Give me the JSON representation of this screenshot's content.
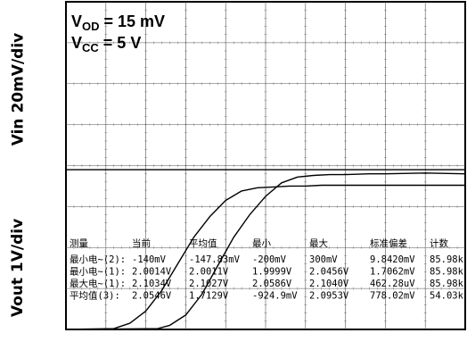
{
  "y_labels": {
    "top": "Vin 20mV/div",
    "bottom": "Vout 1V/div"
  },
  "conditions": [
    {
      "main": "V",
      "sub": "OD",
      "rest": " = 15 mV"
    },
    {
      "main": "V",
      "sub": "CC",
      "rest": " = 5 V"
    }
  ],
  "chart_data": {
    "type": "line",
    "title": "",
    "xlabel": "",
    "ylabel": "",
    "grid": true,
    "divisions": {
      "x": 10,
      "y": 8
    },
    "series": [
      {
        "x": [
          0,
          1.2,
          1.6,
          2.0,
          2.4,
          2.8,
          3.2,
          3.6,
          4.0,
          4.4,
          4.8,
          5.2,
          5.6,
          6.0,
          6.4,
          7.0,
          8.0,
          9.0,
          10.0
        ],
        "y": [
          0.0,
          0.02,
          0.15,
          0.45,
          0.95,
          1.6,
          2.25,
          2.75,
          3.15,
          3.38,
          3.46,
          3.48,
          3.5,
          3.5,
          3.52,
          3.52,
          3.52,
          3.52,
          3.52
        ]
      },
      {
        "x": [
          0,
          2.3,
          2.6,
          3.0,
          3.4,
          3.8,
          4.2,
          4.6,
          5.0,
          5.4,
          5.8,
          6.2,
          6.6,
          7.0,
          7.6,
          8.0,
          9.0,
          10.0
        ],
        "y": [
          0.0,
          0.02,
          0.1,
          0.35,
          0.85,
          1.55,
          2.25,
          2.8,
          3.25,
          3.58,
          3.72,
          3.76,
          3.78,
          3.78,
          3.8,
          3.8,
          3.82,
          3.8
        ]
      },
      {
        "x": [
          0,
          10
        ],
        "y": [
          3.9,
          3.9
        ]
      }
    ]
  },
  "measurements": {
    "headers": [
      "测量",
      "当前",
      "平均值",
      "最小",
      "最大",
      "标准偏差",
      "计数"
    ],
    "rows": [
      [
        "最小电~(2):",
        "-140mV",
        "-147.83mV",
        "-200mV",
        "300mV",
        "9.8420mV",
        "85.98k"
      ],
      [
        "最小电~(1):",
        "2.0014V",
        "2.0011V",
        "1.9999V",
        "2.0456V",
        "1.7062mV",
        "85.98k"
      ],
      [
        "最大电~(1):",
        "2.1034V",
        "2.1027V",
        "2.0586V",
        "2.1040V",
        "462.28uV",
        "85.98k"
      ],
      [
        "平均值(3):",
        "2.0546V",
        "1.7129V",
        "-924.9mV",
        "2.0953V",
        "778.02mV",
        "54.03k"
      ]
    ]
  }
}
